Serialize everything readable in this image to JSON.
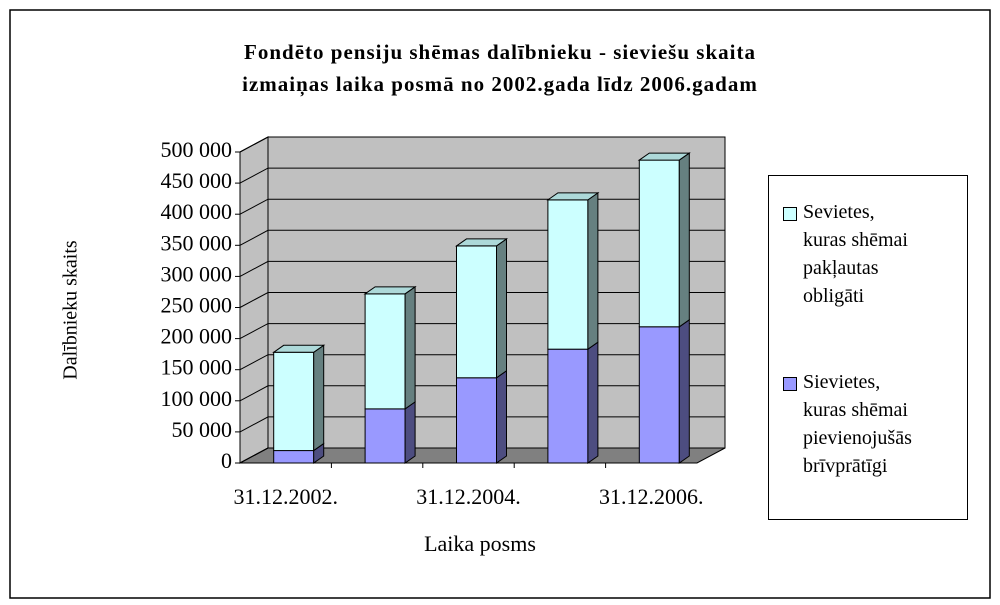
{
  "chart_data": {
    "type": "bar",
    "stacked": true,
    "three_d": true,
    "title": "Fondēto pensiju shēmas dalībnieku - sieviešu skaita\nizmaiņas laika posmā no 2002.gada līdz 2006.gadam",
    "x_label": "Laika posms",
    "y_label": "Dalībnieku skaits",
    "categories": [
      "31.12.2002.",
      null,
      "31.12.2004.",
      null,
      "31.12.2006."
    ],
    "series": [
      {
        "name": "Sievietes,\nkuras shēmai\npievienojušās\nbrīvprātīgi",
        "color": "#9999ff",
        "values": [
          20000,
          87000,
          137000,
          183000,
          219000
        ]
      },
      {
        "name": "Sevietes,\nkuras shēmai\npakļautas\nobligāti",
        "color": "#ccffff",
        "values": [
          158000,
          185000,
          212000,
          240000,
          268000
        ]
      }
    ],
    "ylim": [
      0,
      500000
    ],
    "yticks": [
      0,
      {
        "value": 50000,
        "label": "50 000"
      },
      {
        "value": 100000,
        "label": "100 000"
      },
      {
        "value": 150000,
        "label": "150 000"
      },
      {
        "value": 200000,
        "label": "200 000"
      },
      {
        "value": 250000,
        "label": "250 000"
      },
      {
        "value": 300000,
        "label": "300 000"
      },
      {
        "value": 350000,
        "label": "350 000"
      },
      {
        "value": 400000,
        "label": "400 000"
      },
      {
        "value": 450000,
        "label": "450 000"
      },
      {
        "value": 500000,
        "label": "500 000"
      }
    ],
    "grid": true,
    "legend": "right"
  }
}
